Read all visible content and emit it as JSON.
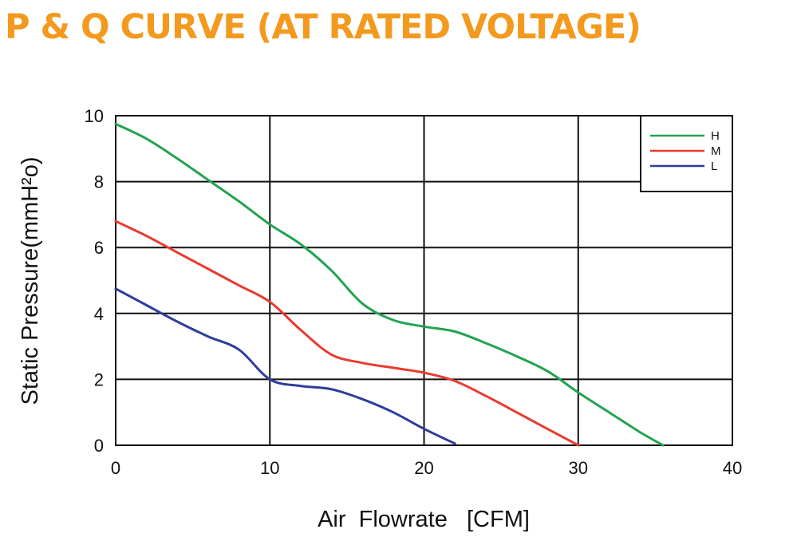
{
  "chart_data": {
    "type": "line",
    "title": "P & Q CURVE (AT RATED VOLTAGE)",
    "xlabel": "Air  Flowrate   [CFM]",
    "ylabel": "Static Pressure(mmH²o)",
    "xlim": [
      0,
      40
    ],
    "ylim": [
      0,
      10
    ],
    "xticks": [
      "0",
      "10",
      "20",
      "30",
      "40"
    ],
    "yticks": [
      "0",
      "2",
      "4",
      "6",
      "8",
      "10"
    ],
    "grid": true,
    "legend_position": "top-right",
    "series": [
      {
        "name": "H",
        "color": "#22a350",
        "x": [
          0,
          2,
          4,
          6,
          8,
          10,
          12,
          14,
          16,
          18,
          20,
          22,
          24,
          26,
          28,
          30,
          32,
          34,
          35.5
        ],
        "y": [
          9.75,
          9.3,
          8.7,
          8.05,
          7.4,
          6.7,
          6.1,
          5.3,
          4.3,
          3.8,
          3.6,
          3.45,
          3.1,
          2.7,
          2.25,
          1.6,
          1.0,
          0.4,
          0.0
        ]
      },
      {
        "name": "M",
        "color": "#e83a2f",
        "x": [
          0,
          2,
          4,
          6,
          8,
          10,
          12,
          14,
          16,
          18,
          20,
          22,
          24,
          26,
          28,
          30
        ],
        "y": [
          6.8,
          6.35,
          5.85,
          5.35,
          4.85,
          4.35,
          3.5,
          2.75,
          2.5,
          2.35,
          2.2,
          1.95,
          1.5,
          1.0,
          0.5,
          0.0
        ]
      },
      {
        "name": "L",
        "color": "#2d3c9c",
        "x": [
          0,
          2,
          4,
          6,
          8,
          10,
          12,
          14,
          16,
          18,
          20,
          22
        ],
        "y": [
          4.75,
          4.25,
          3.75,
          3.3,
          2.9,
          2.0,
          1.8,
          1.7,
          1.4,
          1.0,
          0.5,
          0.05
        ]
      }
    ]
  }
}
